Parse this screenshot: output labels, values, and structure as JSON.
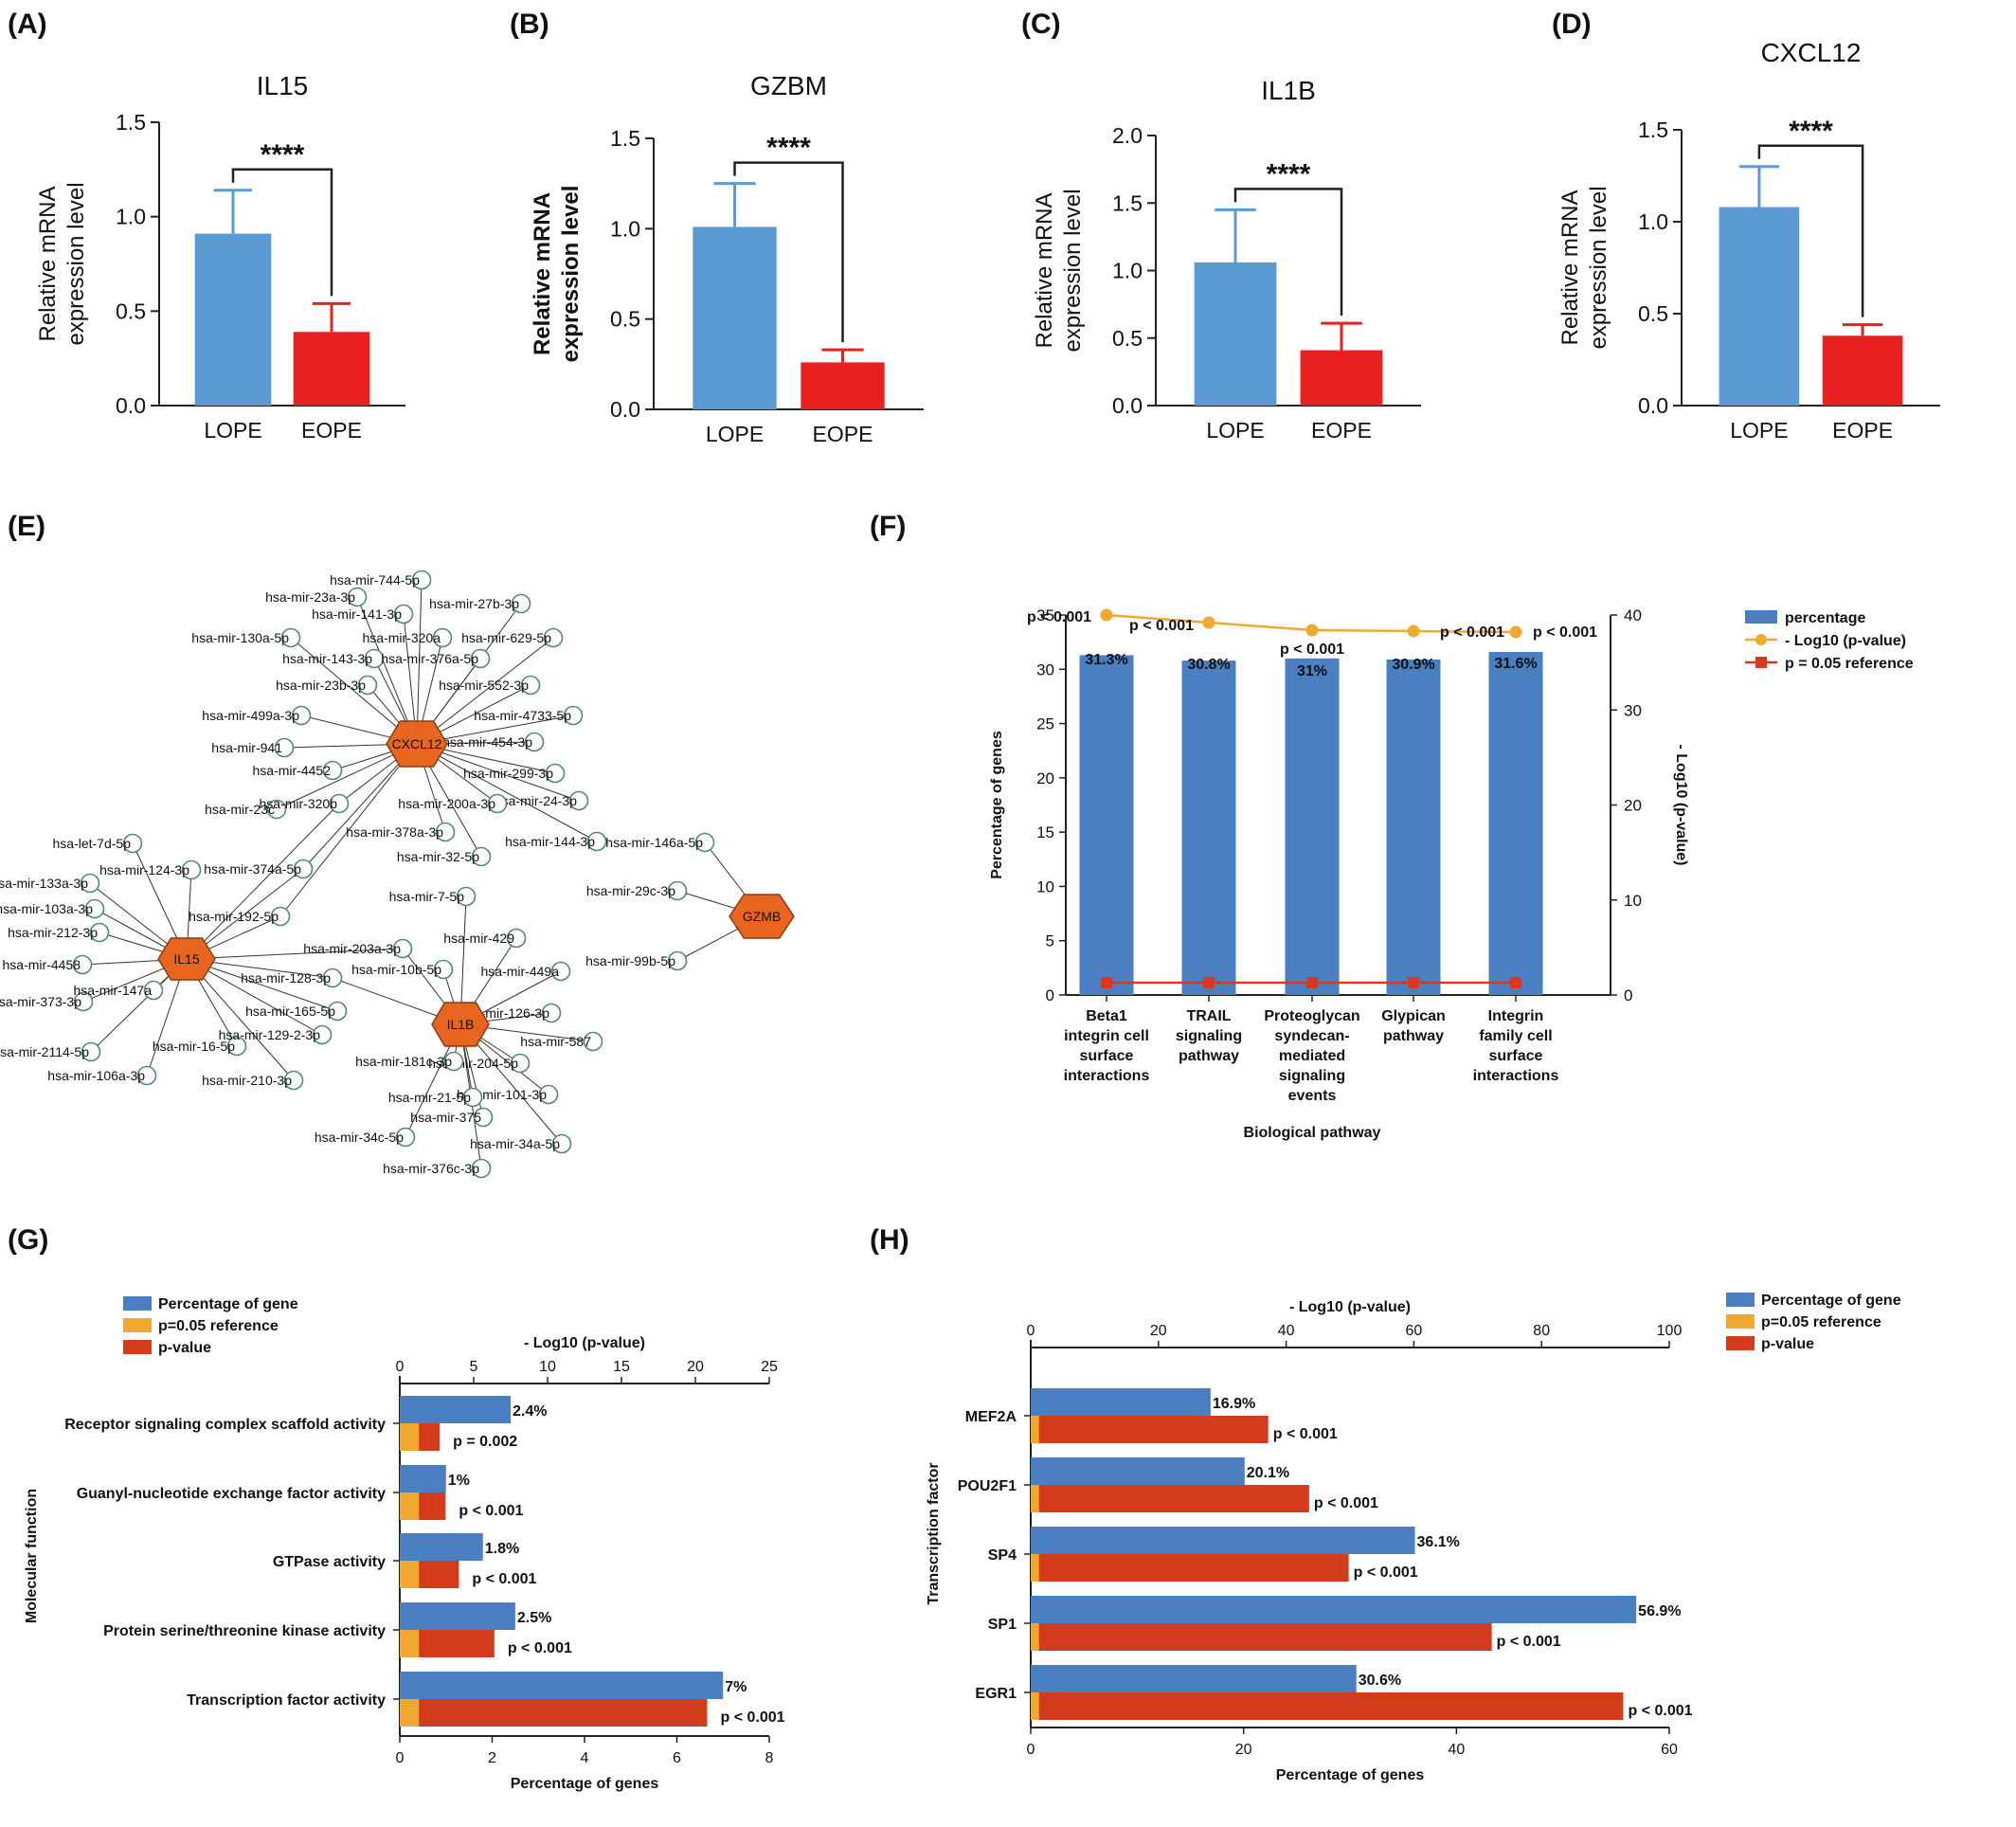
{
  "panel_labels": [
    "(A)",
    "(B)",
    "(C)",
    "(D)",
    "(E)",
    "(F)",
    "(G)",
    "(H)"
  ],
  "colors": {
    "blue": "#5b9bd5",
    "red": "#e8201e",
    "fblue": "#4a7fc1",
    "orange": "#f0a830",
    "darkred": "#d23c1c",
    "line_red": "#d9381e",
    "node": "#e8651f",
    "mir_stroke": "#4f8a6e"
  },
  "chart_data": [
    {
      "id": "A",
      "type": "bar",
      "title": "IL15",
      "ylabel": "Relative mRNA expression level",
      "ylim": [
        0,
        1.5
      ],
      "yticks": [
        "0.0",
        "0.5",
        "1.0",
        "1.5"
      ],
      "categories": [
        "LOPE",
        "EOPE"
      ],
      "values": [
        0.91,
        0.39
      ],
      "errors": [
        0.23,
        0.15
      ],
      "significance": "****"
    },
    {
      "id": "B",
      "type": "bar",
      "title": "GZBM",
      "ylabel": "Relative mRNA expression level",
      "ylim": [
        0,
        1.5
      ],
      "yticks": [
        "0.0",
        "0.5",
        "1.0",
        "1.5"
      ],
      "categories": [
        "LOPE",
        "EOPE"
      ],
      "values": [
        1.01,
        0.26
      ],
      "errors": [
        0.24,
        0.07
      ],
      "significance": "****"
    },
    {
      "id": "C",
      "type": "bar",
      "title": "IL1B",
      "ylabel": "Relative mRNA expression level",
      "ylim": [
        0,
        2.0
      ],
      "yticks": [
        "0.0",
        "0.5",
        "1.0",
        "1.5",
        "2.0"
      ],
      "categories": [
        "LOPE",
        "EOPE"
      ],
      "values": [
        1.06,
        0.41
      ],
      "errors": [
        0.39,
        0.2
      ],
      "significance": "****"
    },
    {
      "id": "D",
      "type": "bar",
      "title": "CXCL12",
      "ylabel": "Relative mRNA expression level",
      "ylim": [
        0,
        1.5
      ],
      "yticks": [
        "0.0",
        "0.5",
        "1.0",
        "1.5"
      ],
      "categories": [
        "LOPE",
        "EOPE"
      ],
      "values": [
        1.08,
        0.38
      ],
      "errors": [
        0.22,
        0.06
      ],
      "significance": "****"
    },
    {
      "id": "F",
      "type": "bar",
      "xlabel": "Biological pathway",
      "ylabel": "Percentage of genes",
      "y2label": "- Log10 (p-value)",
      "ylim": [
        0,
        35
      ],
      "y2lim": [
        0,
        40
      ],
      "yticks": [
        "0",
        "5",
        "10",
        "15",
        "20",
        "25",
        "30",
        "35"
      ],
      "y2ticks": [
        "0",
        "10",
        "20",
        "30",
        "40"
      ],
      "categories": [
        [
          "Beta1",
          "integrin cell",
          "surface",
          "interactions"
        ],
        [
          "TRAIL",
          "signaling",
          "pathway"
        ],
        [
          "Proteoglycan",
          "syndecan-",
          "mediated",
          "signaling",
          "events"
        ],
        [
          "Glypican",
          "pathway"
        ],
        [
          "Integrin",
          "family cell",
          "surface",
          "interactions"
        ]
      ],
      "series": [
        {
          "name": "percentage",
          "values": [
            31.3,
            30.8,
            31,
            30.9,
            31.6
          ]
        },
        {
          "name": "- Log10 (p-value)",
          "values": [
            40,
            39.2,
            38.4,
            38.3,
            38.2
          ]
        },
        {
          "name": "p = 0.05 reference",
          "values": [
            1.3,
            1.3,
            1.3,
            1.3,
            1.3
          ]
        }
      ],
      "data_labels": [
        "31.3%",
        "30.8%",
        "31%",
        "30.9%",
        "31.6%"
      ],
      "p_labels": [
        "p < 0.001",
        "p < 0.001",
        "p < 0.001",
        "p < 0.001",
        "p < 0.001"
      ]
    },
    {
      "id": "G",
      "type": "bar",
      "orientation": "horizontal",
      "ylabel": "Molecular function",
      "xlabel": "Percentage of genes",
      "x2label": "- Log10 (p-value)",
      "xlim": [
        0,
        8
      ],
      "x2lim": [
        0,
        25
      ],
      "xticks": [
        "0",
        "2",
        "4",
        "6",
        "8"
      ],
      "x2ticks": [
        "0",
        "5",
        "10",
        "15",
        "20",
        "25"
      ],
      "categories": [
        "Receptor signaling complex scaffold activity",
        "Guanyl-nucleotide exchange factor activity",
        "GTPase activity",
        "Protein serine/threonine kinase activity",
        "Transcription factor activity"
      ],
      "series": [
        {
          "name": "Percentage of gene",
          "values": [
            2.4,
            1,
            1.8,
            2.5,
            7
          ]
        },
        {
          "name": "p=0.05 reference",
          "values": [
            1.3,
            1.3,
            1.3,
            1.3,
            1.3
          ]
        },
        {
          "name": "p-value",
          "values": [
            2.7,
            3.1,
            4.0,
            6.4,
            20.8
          ]
        }
      ],
      "data_labels": [
        "2.4%",
        "1%",
        "1.8%",
        "2.5%",
        "7%"
      ],
      "p_labels": [
        "p = 0.002",
        "p < 0.001",
        "p < 0.001",
        "p < 0.001",
        "p < 0.001"
      ]
    },
    {
      "id": "H",
      "type": "bar",
      "orientation": "horizontal",
      "ylabel": "Transcription factor",
      "xlabel": "Percentage of genes",
      "x2label": "- Log10 (p-value)",
      "xlim": [
        0,
        60
      ],
      "x2lim": [
        0,
        100
      ],
      "xticks": [
        "0",
        "20",
        "40",
        "60"
      ],
      "x2ticks": [
        "0",
        "20",
        "40",
        "60",
        "80",
        "100"
      ],
      "categories": [
        "MEF2A",
        "POU2F1",
        "SP4",
        "SP1",
        "EGR1"
      ],
      "series": [
        {
          "name": "Percentage of gene",
          "values": [
            16.9,
            20.1,
            36.1,
            56.9,
            30.6
          ]
        },
        {
          "name": "p=0.05 reference",
          "values": [
            1.3,
            1.3,
            1.3,
            1.3,
            1.3
          ]
        },
        {
          "name": "p-value",
          "values": [
            37.2,
            43.6,
            49.8,
            72.2,
            92.8
          ]
        }
      ],
      "data_labels": [
        "16.9%",
        "20.1%",
        "36.1%",
        "56.9%",
        "30.6%"
      ],
      "p_labels": [
        "p < 0.001",
        "p < 0.001",
        "p < 0.001",
        "p < 0.001",
        "p < 0.001"
      ]
    }
  ],
  "network": {
    "hubs": [
      "CXCL12",
      "IL15",
      "IL1B",
      "GZMB"
    ],
    "mirnas": {
      "CXCL12": [
        "hsa-mir-744-5p",
        "hsa-mir-23a-3p",
        "hsa-mir-27b-3p",
        "hsa-mir-141-3p",
        "hsa-mir-130a-5p",
        "hsa-mir-320a",
        "hsa-mir-629-5p",
        "hsa-mir-143-3p",
        "hsa-mir-376a-5p",
        "hsa-mir-23b-3p",
        "hsa-mir-552-3p",
        "hsa-mir-499a-3p",
        "hsa-mir-4733-5p",
        "hsa-mir-941",
        "hsa-mir-454-3p",
        "hsa-mir-4452",
        "hsa-mir-299-3p",
        "hsa-mir-23c",
        "hsa-mir-24-3p",
        "hsa-mir-200a-3p",
        "hsa-mir-144-3p",
        "hsa-mir-378a-3p",
        "hsa-mir-32-5p"
      ],
      "IL15": [
        "hsa-let-7d-5p",
        "hsa-mir-124-3p",
        "hsa-mir-133a-3p",
        "hsa-mir-103a-3p",
        "hsa-mir-212-3p",
        "hsa-mir-4458",
        "hsa-mir-373-3p",
        "hsa-mir-147a",
        "hsa-mir-2114-5p",
        "hsa-mir-16-5p",
        "hsa-mir-106a-3p",
        "hsa-mir-210-3p",
        "hsa-mir-165-5p",
        "hsa-mir-129-2-3p"
      ],
      "IL1B": [
        "hsa-mir-7-5p",
        "hsa-mir-429",
        "hsa-mir-449a",
        "hsa-mir-10b-5p",
        "hsa-mir-126-3p",
        "hsa-mir-587",
        "hsa-mir-204-5p",
        "hsa-mir-181c-3p",
        "hsa-mir-101-3p",
        "hsa-mir-21-5p",
        "hsa-mir-375",
        "hsa-mir-34c-5p",
        "hsa-mir-34a-5p",
        "hsa-mir-376c-3p"
      ],
      "shared": [
        "hsa-mir-320b",
        "hsa-mir-374a-5p",
        "hsa-mir-192-5p",
        "hsa-mir-203a-3p",
        "hsa-mir-128-3p"
      ],
      "GZMB": [
        "hsa-mir-146a-5p",
        "hsa-mir-29c-3p",
        "hsa-mir-99b-5p"
      ]
    }
  }
}
